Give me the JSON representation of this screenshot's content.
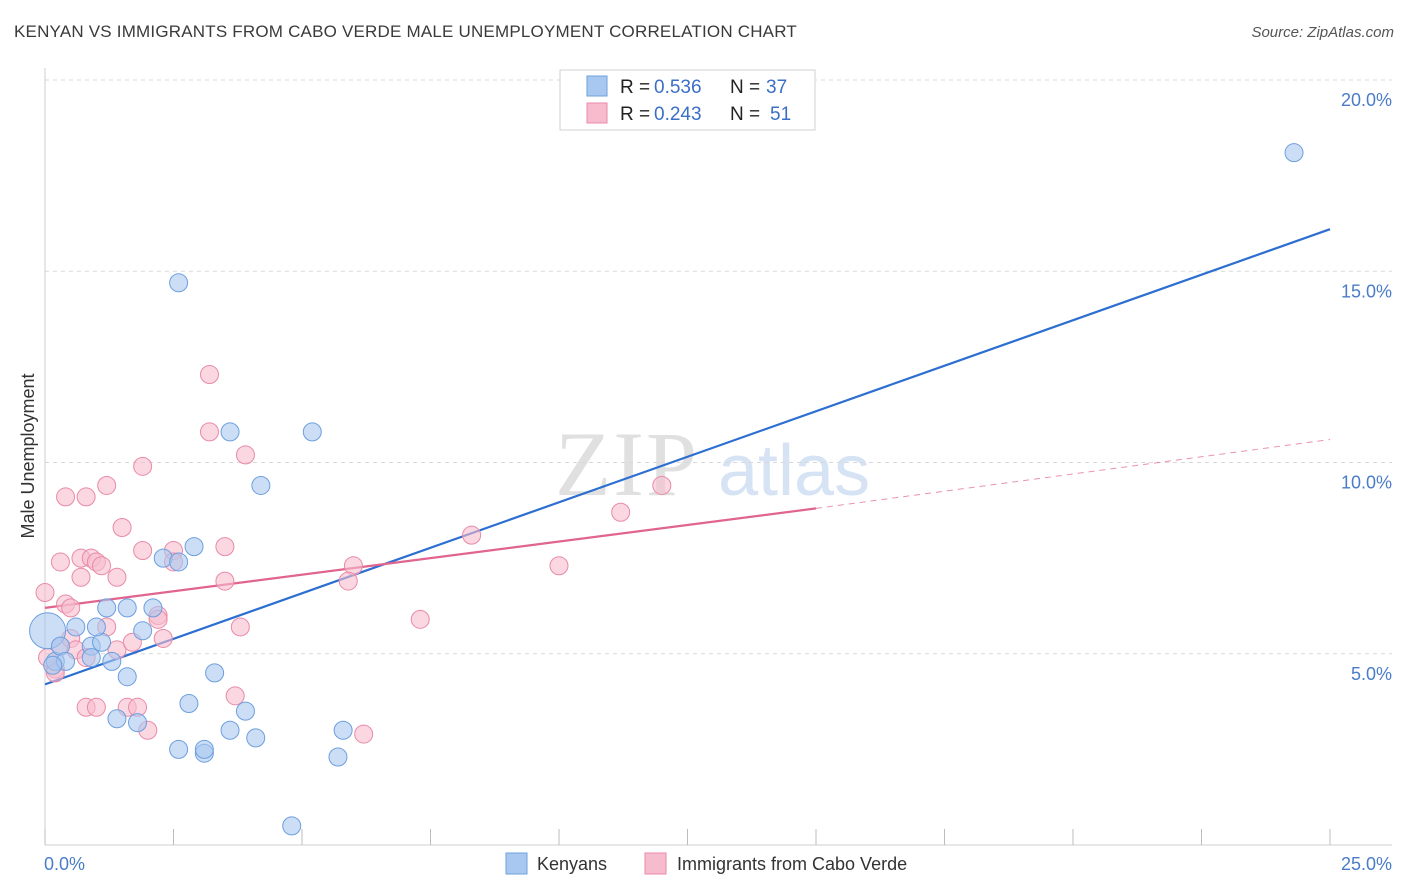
{
  "title": "KENYAN VS IMMIGRANTS FROM CABO VERDE MALE UNEMPLOYMENT CORRELATION CHART",
  "source": "Source: ZipAtlas.com",
  "watermark": {
    "zip": "ZIP",
    "atlas": "atlas"
  },
  "colors": {
    "blue_fill": "#a9c8f0",
    "blue_stroke": "#6d9fde",
    "blue_line": "#2c6fd1",
    "pink_fill": "#f6bccd",
    "pink_stroke": "#e98aa8",
    "pink_line": "#e0648e",
    "tick_blue": "#4a7cc9",
    "grid": "#d8d8d8"
  },
  "stats": [
    {
      "r_label": "R =",
      "r_value": "0.536",
      "n_label": "N =",
      "n_value": "37"
    },
    {
      "r_label": "R =",
      "r_value": "0.243",
      "n_label": "N =",
      "n_value": "51"
    }
  ],
  "chart_data": {
    "type": "scatter",
    "title": "KENYAN VS IMMIGRANTS FROM CABO VERDE MALE UNEMPLOYMENT CORRELATION CHART",
    "xlabel": "",
    "ylabel": "Male Unemployment",
    "xlim": [
      0,
      25
    ],
    "ylim": [
      0,
      20
    ],
    "x_tick_labels": [
      "0.0%",
      "25.0%"
    ],
    "y_ticks": [
      5,
      10,
      15,
      20
    ],
    "y_tick_labels": [
      "5.0%",
      "10.0%",
      "15.0%",
      "20.0%"
    ],
    "grid": true,
    "legend_position": "bottom-center",
    "series": [
      {
        "name": "Kenyans",
        "color": "#a9c8f0",
        "points": [
          [
            0.05,
            5.6
          ],
          [
            0.2,
            4.8
          ],
          [
            0.3,
            5.2
          ],
          [
            0.4,
            4.8
          ],
          [
            0.9,
            5.2
          ],
          [
            1.1,
            5.3
          ],
          [
            0.6,
            5.7
          ],
          [
            0.9,
            4.9
          ],
          [
            1.0,
            5.7
          ],
          [
            1.2,
            6.2
          ],
          [
            1.3,
            4.8
          ],
          [
            1.6,
            6.2
          ],
          [
            1.6,
            4.4
          ],
          [
            1.9,
            5.6
          ],
          [
            2.1,
            6.2
          ],
          [
            1.4,
            3.3
          ],
          [
            1.8,
            3.2
          ],
          [
            2.3,
            7.5
          ],
          [
            2.6,
            7.4
          ],
          [
            2.9,
            7.8
          ],
          [
            2.6,
            2.5
          ],
          [
            2.8,
            3.7
          ],
          [
            3.1,
            2.4
          ],
          [
            3.1,
            2.5
          ],
          [
            3.3,
            4.5
          ],
          [
            3.6,
            3.0
          ],
          [
            3.9,
            3.5
          ],
          [
            4.1,
            2.8
          ],
          [
            4.2,
            9.4
          ],
          [
            3.6,
            10.8
          ],
          [
            2.6,
            14.7
          ],
          [
            4.8,
            0.5
          ],
          [
            5.2,
            10.8
          ],
          [
            5.7,
            2.3
          ],
          [
            5.8,
            3.0
          ],
          [
            24.3,
            18.1
          ],
          [
            0.15,
            4.7
          ]
        ],
        "trendline": [
          [
            0,
            4.2
          ],
          [
            25,
            16.1
          ]
        ]
      },
      {
        "name": "Immigrants from Cabo Verde",
        "color": "#f6bccd",
        "points": [
          [
            0.0,
            6.6
          ],
          [
            0.2,
            4.6
          ],
          [
            0.3,
            5.2
          ],
          [
            0.2,
            4.5
          ],
          [
            0.3,
            7.4
          ],
          [
            0.4,
            6.3
          ],
          [
            0.5,
            5.4
          ],
          [
            0.4,
            9.1
          ],
          [
            0.5,
            6.2
          ],
          [
            0.6,
            5.1
          ],
          [
            0.7,
            7.5
          ],
          [
            0.7,
            7.0
          ],
          [
            0.8,
            4.9
          ],
          [
            0.8,
            3.6
          ],
          [
            0.8,
            9.1
          ],
          [
            0.9,
            7.5
          ],
          [
            1.0,
            7.4
          ],
          [
            1.0,
            3.6
          ],
          [
            1.1,
            7.3
          ],
          [
            1.2,
            5.7
          ],
          [
            1.2,
            9.4
          ],
          [
            1.4,
            7.0
          ],
          [
            1.4,
            5.1
          ],
          [
            1.5,
            8.3
          ],
          [
            1.6,
            3.6
          ],
          [
            1.7,
            5.3
          ],
          [
            1.8,
            3.6
          ],
          [
            1.9,
            7.7
          ],
          [
            1.9,
            9.9
          ],
          [
            2.0,
            3.0
          ],
          [
            2.2,
            6.0
          ],
          [
            2.2,
            5.9
          ],
          [
            2.3,
            5.4
          ],
          [
            2.5,
            7.7
          ],
          [
            2.5,
            7.4
          ],
          [
            3.2,
            12.3
          ],
          [
            3.2,
            10.8
          ],
          [
            3.5,
            6.9
          ],
          [
            3.5,
            7.8
          ],
          [
            3.7,
            3.9
          ],
          [
            3.8,
            5.7
          ],
          [
            3.9,
            10.2
          ],
          [
            6.0,
            7.3
          ],
          [
            5.9,
            6.9
          ],
          [
            6.2,
            2.9
          ],
          [
            7.3,
            5.9
          ],
          [
            8.3,
            8.1
          ],
          [
            10.0,
            7.3
          ],
          [
            11.2,
            8.7
          ],
          [
            12.0,
            9.4
          ],
          [
            0.05,
            4.9
          ]
        ],
        "trendline": [
          [
            0,
            6.2
          ],
          [
            15,
            8.8
          ]
        ],
        "trendline_extension": [
          [
            15,
            8.8
          ],
          [
            25,
            10.6
          ]
        ]
      }
    ]
  },
  "legend": {
    "items": [
      {
        "label": "Kenyans"
      },
      {
        "label": "Immigrants from Cabo Verde"
      }
    ]
  }
}
